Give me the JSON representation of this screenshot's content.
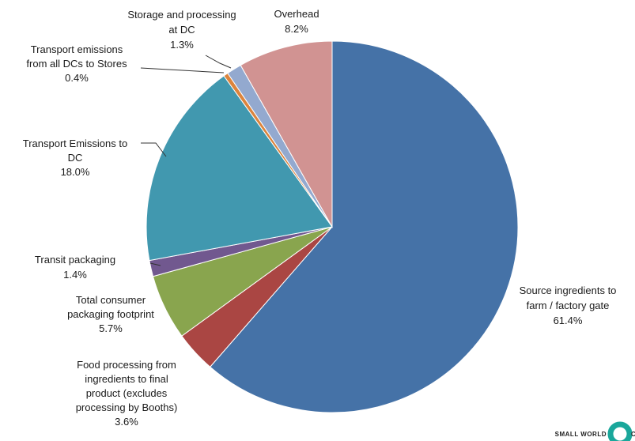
{
  "chart_data": {
    "type": "pie",
    "title": "",
    "start_angle_deg": 0,
    "direction": "clockwise",
    "slices": [
      {
        "label_lines": [
          "Source ingredients to",
          "farm / factory gate",
          "61.4%"
        ],
        "value": 61.4,
        "color": "#4572a7"
      },
      {
        "label_lines": [
          "Food processing    from",
          "ingredients to final",
          "product (excludes",
          "processing by Booths)",
          "3.6%"
        ],
        "value": 3.6,
        "color": "#aa4643"
      },
      {
        "label_lines": [
          "Total consumer",
          "packaging footprint",
          "5.7%"
        ],
        "value": 5.7,
        "color": "#89a54e"
      },
      {
        "label_lines": [
          "Transit packaging",
          "1.4%"
        ],
        "value": 1.4,
        "color": "#71588f"
      },
      {
        "label_lines": [
          "Transport Emissions to",
          "DC",
          "18.0%"
        ],
        "value": 18.0,
        "color": "#4198af"
      },
      {
        "label_lines": [
          "Transport emissions",
          "from all DCs to Stores",
          "0.4%"
        ],
        "value": 0.4,
        "color": "#db843d"
      },
      {
        "label_lines": [
          "Storage and processing",
          "at DC",
          "1.3%"
        ],
        "value": 1.3,
        "color": "#93a9cf"
      },
      {
        "label_lines": [
          "Overhead",
          "8.2%"
        ],
        "value": 8.2,
        "color": "#d19392"
      }
    ]
  },
  "logo": {
    "text": "SMALL WORLD",
    "suffix": "CO",
    "ring_color": "#1aa79b"
  }
}
